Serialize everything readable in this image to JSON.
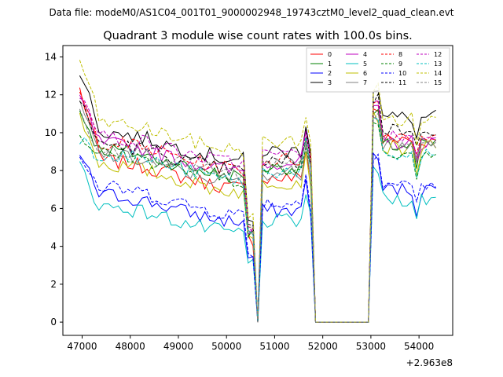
{
  "figure": {
    "suptitle": "Data file: modeM0/AS1C04_001T01_9000002948_19743cztM0_level2_quad_clean.evt"
  },
  "chart_data": {
    "type": "line",
    "title": "Quadrant 3 module wise count rates with 100.0s bins.",
    "xlabel": "",
    "ylabel": "",
    "x_offset_label": "+2.963e8",
    "xlim": [
      46600,
      54700
    ],
    "ylim": [
      -0.7,
      14.6
    ],
    "xticks": [
      47000,
      48000,
      49000,
      50000,
      51000,
      52000,
      53000,
      54000
    ],
    "xtick_labels": [
      "47000",
      "48000",
      "49000",
      "50000",
      "51000",
      "52000",
      "53000",
      "54000"
    ],
    "yticks": [
      0,
      2,
      4,
      6,
      8,
      10,
      12,
      14
    ],
    "ytick_labels": [
      "0",
      "2",
      "4",
      "6",
      "8",
      "10",
      "12",
      "14"
    ],
    "grid": false,
    "legend_location": "upper right",
    "x_start": 46950,
    "bin_width": 100,
    "gaps": [
      [
        50600,
        50700
      ],
      [
        51850,
        53000
      ]
    ],
    "segment_end": 54350,
    "series": [
      {
        "name": "0",
        "color": "#ff0000",
        "dash": "solid",
        "level": 8.0,
        "start": 12.3,
        "post": 9.6
      },
      {
        "name": "1",
        "color": "#008000",
        "dash": "solid",
        "level": 8.6,
        "start": 11.2,
        "post": 9.3
      },
      {
        "name": "2",
        "color": "#0000ff",
        "dash": "solid",
        "level": 6.2,
        "start": 8.9,
        "post": 7.0
      },
      {
        "name": "3",
        "color": "#000000",
        "dash": "solid",
        "level": 9.5,
        "start": 13.4,
        "post": 10.8
      },
      {
        "name": "4",
        "color": "#bf00bf",
        "dash": "solid",
        "level": 8.9,
        "start": 11.9,
        "post": 9.5
      },
      {
        "name": "5",
        "color": "#00bfbf",
        "dash": "solid",
        "level": 5.6,
        "start": 8.3,
        "post": 6.5
      },
      {
        "name": "6",
        "color": "#bfbf00",
        "dash": "solid",
        "level": 7.8,
        "start": 11.0,
        "post": 9.2
      },
      {
        "name": "7",
        "color": "#808080",
        "dash": "solid",
        "level": 8.3,
        "start": 11.5,
        "post": 9.4
      },
      {
        "name": "8",
        "color": "#ff0000",
        "dash": "dashed",
        "level": 9.0,
        "start": 12.0,
        "post": 9.9
      },
      {
        "name": "9",
        "color": "#008000",
        "dash": "dashed",
        "level": 8.4,
        "start": 10.0,
        "post": 9.0
      },
      {
        "name": "10",
        "color": "#0000ff",
        "dash": "dashed",
        "level": 6.6,
        "start": 8.8,
        "post": 7.3
      },
      {
        "name": "11",
        "color": "#000000",
        "dash": "dashed",
        "level": 8.9,
        "start": 11.6,
        "post": 10.2
      },
      {
        "name": "12",
        "color": "#bf00bf",
        "dash": "dashed",
        "level": 9.3,
        "start": 12.1,
        "post": 9.8
      },
      {
        "name": "13",
        "color": "#00bfbf",
        "dash": "dashed",
        "level": 8.4,
        "start": 9.8,
        "post": 8.8
      },
      {
        "name": "14",
        "color": "#bfbf00",
        "dash": "dashed",
        "level": 10.0,
        "start": 13.9,
        "post": 10.7
      },
      {
        "name": "15",
        "color": "#808080",
        "dash": "dashed",
        "level": 8.7,
        "start": 11.1,
        "post": 9.4
      }
    ]
  }
}
